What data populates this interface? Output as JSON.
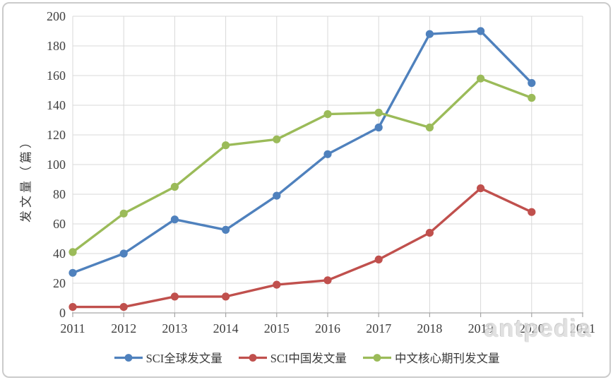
{
  "watermark": {
    "text": "antpedia"
  },
  "chart_data": {
    "type": "line",
    "title": "",
    "xlabel": "",
    "ylabel": "发文量（篇）",
    "x_labels": [
      "2011",
      "2012",
      "2013",
      "2014",
      "2015",
      "2016",
      "2017",
      "2018",
      "2019",
      "2020",
      "2021"
    ],
    "y_ticks": [
      0,
      20,
      40,
      60,
      80,
      100,
      120,
      140,
      160,
      180,
      200
    ],
    "ylim": [
      0,
      200
    ],
    "grid": true,
    "legend_position": "bottom",
    "series": [
      {
        "name": "SCI全球发文量",
        "color": "#4F81BD",
        "x": [
          2011,
          2012,
          2013,
          2014,
          2015,
          2016,
          2017,
          2018,
          2019,
          2020
        ],
        "values": [
          27,
          40,
          63,
          56,
          79,
          107,
          125,
          188,
          190,
          155
        ]
      },
      {
        "name": "SCI中国发文量",
        "color": "#C0504D",
        "x": [
          2011,
          2012,
          2013,
          2014,
          2015,
          2016,
          2017,
          2018,
          2019,
          2020
        ],
        "values": [
          4,
          4,
          11,
          11,
          19,
          22,
          36,
          54,
          84,
          68
        ]
      },
      {
        "name": "中文核心期刊发文量",
        "color": "#9BBB59",
        "x": [
          2011,
          2012,
          2013,
          2014,
          2015,
          2016,
          2017,
          2018,
          2019,
          2020
        ],
        "values": [
          41,
          67,
          85,
          113,
          117,
          134,
          135,
          125,
          158,
          145
        ]
      }
    ],
    "colors": {
      "grid": "#D9D9D9",
      "axis": "#A6A6A6",
      "text": "#3F3F3F"
    }
  }
}
